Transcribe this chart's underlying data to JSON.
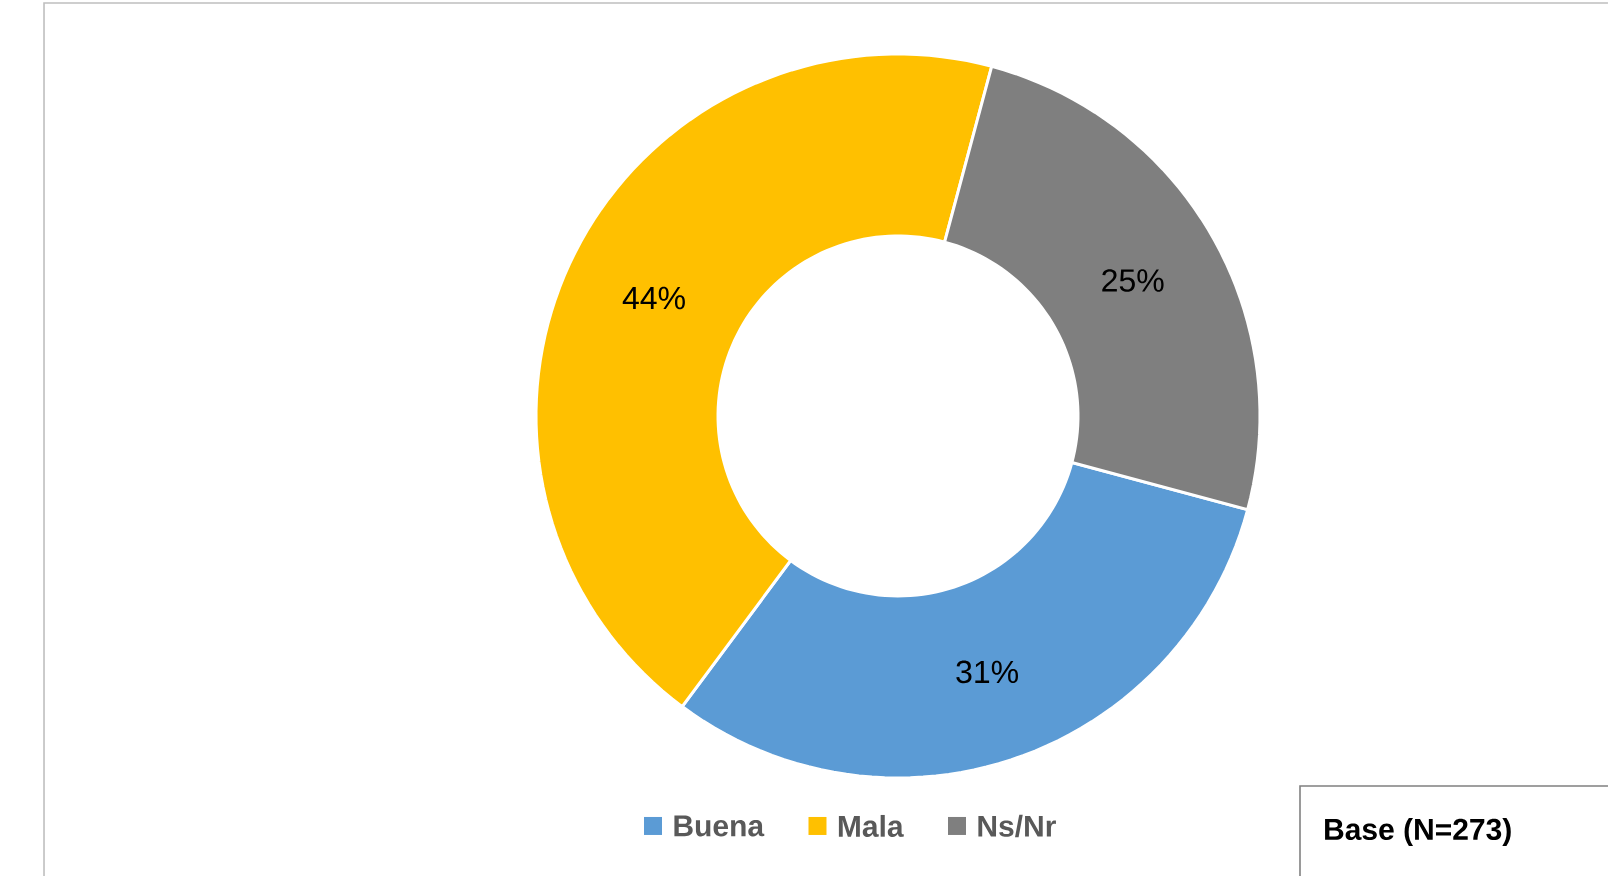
{
  "chart_data": {
    "type": "donut",
    "categories": [
      "Buena",
      "Mala",
      "Ns/Nr"
    ],
    "values": [
      31,
      44,
      25
    ],
    "colors": [
      "#5b9bd5",
      "#ffc000",
      "#7f7f7f"
    ],
    "value_labels": [
      "31%",
      "44%",
      "25%"
    ],
    "legend": "bottom",
    "annotations": [
      "**Base (N=273)**"
    ]
  }
}
